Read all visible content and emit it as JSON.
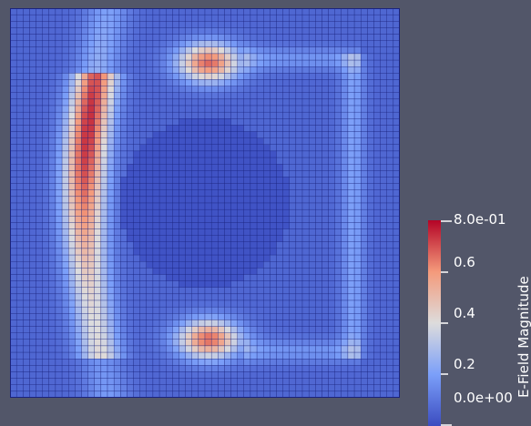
{
  "colors": {
    "background": "#525669",
    "low": "#3b4cc0",
    "mid": "#dddcdc",
    "high": "#b40426",
    "grid_line": "#1a237e"
  },
  "plot": {
    "type": "field-heatmap",
    "field": "E-Field Magnitude",
    "grid": "on",
    "colormap": "cool-to-warm"
  },
  "colorbar": {
    "title": "E-Field Magnitude",
    "range": [
      0.0,
      0.8
    ],
    "ticks": [
      {
        "value": 0.8,
        "label": "8.0e-01"
      },
      {
        "value": 0.6,
        "label": "0.6"
      },
      {
        "value": 0.4,
        "label": "0.4"
      },
      {
        "value": 0.2,
        "label": "0.2"
      },
      {
        "value": 0.0,
        "label": "0.0e+00"
      }
    ]
  }
}
